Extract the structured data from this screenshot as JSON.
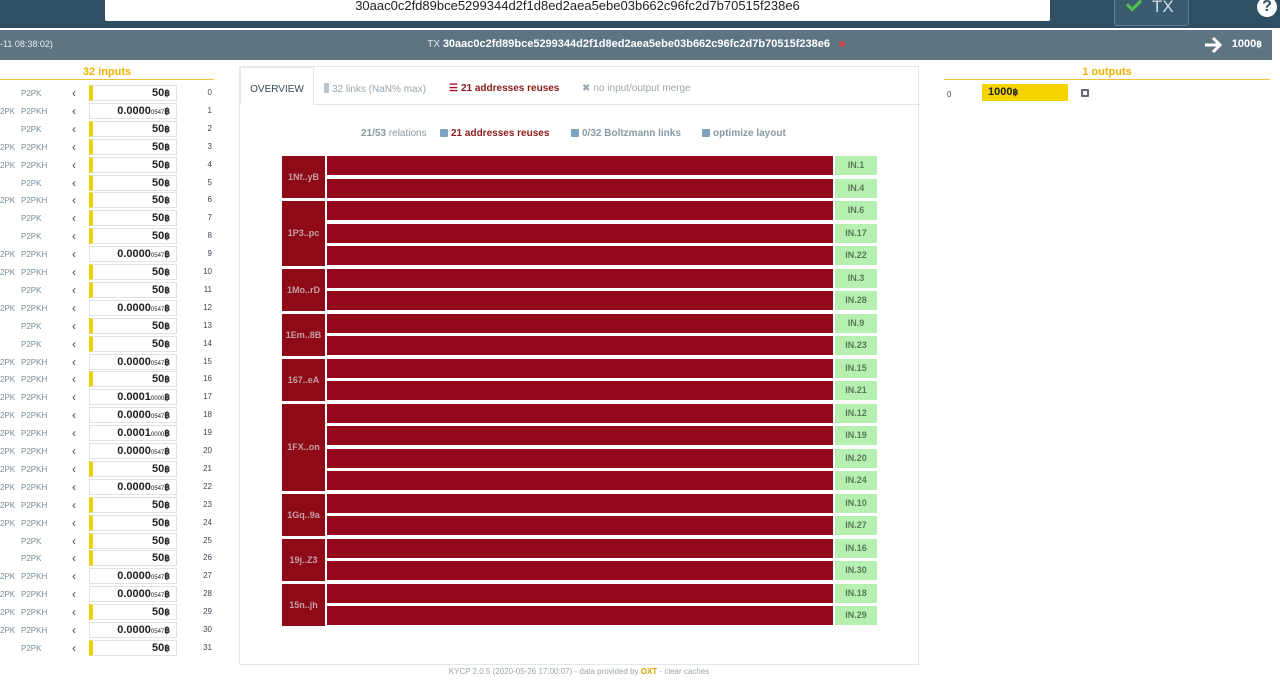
{
  "search": {
    "value": "30aac0c2fd89bce5299344d2f1d8ed2aea5ebe03b662c96fc2d7b70515f238e6"
  },
  "tx_button": {
    "label": "TX"
  },
  "help": {
    "label": "?"
  },
  "txbar": {
    "date": "-11 08:38:02)",
    "tx_prefix": "TX",
    "txid": "30aac0c2fd89bce5299344d2f1d8ed2aea5ebe03b662c96fc2d7b70515f238e6",
    "total": "1000",
    "btc": "฿"
  },
  "inputs_header": "32 inputs",
  "outputs_header": "1 outputs",
  "inputs": [
    {
      "t1": "",
      "t2": "P2PK",
      "int": "50",
      "frac": "",
      "idx": "0",
      "bar": true
    },
    {
      "t1": "2PK",
      "t2": "P2PKH",
      "int": "0.0000",
      "frac": "0547",
      "idx": "1",
      "bar": false
    },
    {
      "t1": "",
      "t2": "P2PK",
      "int": "50",
      "frac": "",
      "idx": "2",
      "bar": true
    },
    {
      "t1": "2PK",
      "t2": "P2PKH",
      "int": "50",
      "frac": "",
      "idx": "3",
      "bar": true
    },
    {
      "t1": "2PK",
      "t2": "P2PKH",
      "int": "50",
      "frac": "",
      "idx": "4",
      "bar": true
    },
    {
      "t1": "",
      "t2": "P2PK",
      "int": "50",
      "frac": "",
      "idx": "5",
      "bar": true
    },
    {
      "t1": "2PK",
      "t2": "P2PKH",
      "int": "50",
      "frac": "",
      "idx": "6",
      "bar": true
    },
    {
      "t1": "",
      "t2": "P2PK",
      "int": "50",
      "frac": "",
      "idx": "7",
      "bar": true
    },
    {
      "t1": "",
      "t2": "P2PK",
      "int": "50",
      "frac": "",
      "idx": "8",
      "bar": true
    },
    {
      "t1": "2PK",
      "t2": "P2PKH",
      "int": "0.0000",
      "frac": "0547",
      "idx": "9",
      "bar": false
    },
    {
      "t1": "2PK",
      "t2": "P2PKH",
      "int": "50",
      "frac": "",
      "idx": "10",
      "bar": true
    },
    {
      "t1": "",
      "t2": "P2PK",
      "int": "50",
      "frac": "",
      "idx": "11",
      "bar": true
    },
    {
      "t1": "2PK",
      "t2": "P2PKH",
      "int": "0.0000",
      "frac": "0547",
      "idx": "12",
      "bar": false
    },
    {
      "t1": "",
      "t2": "P2PK",
      "int": "50",
      "frac": "",
      "idx": "13",
      "bar": true
    },
    {
      "t1": "",
      "t2": "P2PK",
      "int": "50",
      "frac": "",
      "idx": "14",
      "bar": true
    },
    {
      "t1": "2PK",
      "t2": "P2PKH",
      "int": "0.0000",
      "frac": "0547",
      "idx": "15",
      "bar": false
    },
    {
      "t1": "2PK",
      "t2": "P2PKH",
      "int": "50",
      "frac": "",
      "idx": "16",
      "bar": true
    },
    {
      "t1": "2PK",
      "t2": "P2PKH",
      "int": "0.0001",
      "frac": "0000",
      "idx": "17",
      "bar": false
    },
    {
      "t1": "2PK",
      "t2": "P2PKH",
      "int": "0.0000",
      "frac": "0547",
      "idx": "18",
      "bar": false
    },
    {
      "t1": "2PK",
      "t2": "P2PKH",
      "int": "0.0001",
      "frac": "0000",
      "idx": "19",
      "bar": false
    },
    {
      "t1": "2PK",
      "t2": "P2PKH",
      "int": "0.0000",
      "frac": "0547",
      "idx": "20",
      "bar": false
    },
    {
      "t1": "2PK",
      "t2": "P2PKH",
      "int": "50",
      "frac": "",
      "idx": "21",
      "bar": true
    },
    {
      "t1": "2PK",
      "t2": "P2PKH",
      "int": "0.0000",
      "frac": "0547",
      "idx": "22",
      "bar": false
    },
    {
      "t1": "2PK",
      "t2": "P2PKH",
      "int": "50",
      "frac": "",
      "idx": "23",
      "bar": true
    },
    {
      "t1": "2PK",
      "t2": "P2PKH",
      "int": "50",
      "frac": "",
      "idx": "24",
      "bar": true
    },
    {
      "t1": "",
      "t2": "P2PK",
      "int": "50",
      "frac": "",
      "idx": "25",
      "bar": true
    },
    {
      "t1": "",
      "t2": "P2PK",
      "int": "50",
      "frac": "",
      "idx": "26",
      "bar": true
    },
    {
      "t1": "2PK",
      "t2": "P2PKH",
      "int": "0.0000",
      "frac": "0547",
      "idx": "27",
      "bar": false
    },
    {
      "t1": "2PK",
      "t2": "P2PKH",
      "int": "0.0000",
      "frac": "0547",
      "idx": "28",
      "bar": false
    },
    {
      "t1": "2PK",
      "t2": "P2PKH",
      "int": "50",
      "frac": "",
      "idx": "29",
      "bar": true
    },
    {
      "t1": "2PK",
      "t2": "P2PKH",
      "int": "0.0000",
      "frac": "0547",
      "idx": "30",
      "bar": false
    },
    {
      "t1": "",
      "t2": "P2PK",
      "int": "50",
      "frac": "",
      "idx": "31",
      "bar": true
    }
  ],
  "tabs": {
    "overview": "OVERVIEW",
    "links": "32 links (NaN% max)",
    "reuses": "21 addresses reuses",
    "merge": "no input/output merge"
  },
  "options": {
    "relations": "21/53",
    "relations_suffix": "relations",
    "reuses": "21 addresses reuses",
    "boltzmann": "0/32 Boltzmann links",
    "optimize": "optimize layout"
  },
  "clusters": [
    {
      "addr": "1Nf..yB",
      "ins": [
        "IN.1",
        "IN.4"
      ]
    },
    {
      "addr": "1P3..pc",
      "ins": [
        "IN.6",
        "IN.17",
        "IN.22"
      ]
    },
    {
      "addr": "1Mo..rD",
      "ins": [
        "IN.3",
        "IN.28"
      ]
    },
    {
      "addr": "1Em..8B",
      "ins": [
        "IN.9",
        "IN.23"
      ]
    },
    {
      "addr": "167..eA",
      "ins": [
        "IN.15",
        "IN.21"
      ]
    },
    {
      "addr": "1FX..on",
      "ins": [
        "IN.12",
        "IN.19",
        "IN.20",
        "IN.24"
      ]
    },
    {
      "addr": "1Gq..9a",
      "ins": [
        "IN.10",
        "IN.27"
      ]
    },
    {
      "addr": "19j..Z3",
      "ins": [
        "IN.16",
        "IN.30"
      ]
    },
    {
      "addr": "15n..jh",
      "ins": [
        "IN.18",
        "IN.29"
      ]
    }
  ],
  "output": {
    "idx": "0",
    "amount": "1000"
  },
  "footer": {
    "pre": "KYCP 2.0.5 (2020-05-26 17:00:07) - data provided by ",
    "oxt": "OXT",
    "post": " - clear caches"
  },
  "colors": {
    "accent": "#f0b400",
    "reuse": "#95061a",
    "in_label": "#b6f0b0",
    "bar": "#2f4f63"
  }
}
